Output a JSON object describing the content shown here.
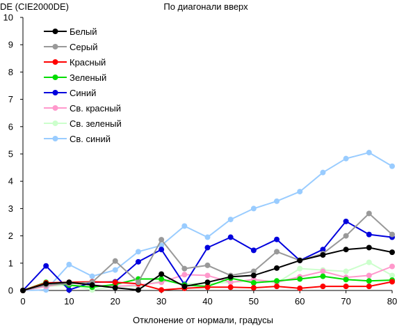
{
  "chart_data": {
    "type": "line",
    "title": "По диагонали вверх",
    "ylabel": "DE (CIE2000DE)",
    "xlabel": "Отклонение от нормали, градусы",
    "x": [
      0,
      5,
      10,
      15,
      20,
      25,
      30,
      35,
      40,
      45,
      50,
      55,
      60,
      65,
      70,
      75,
      80
    ],
    "xlim": [
      0,
      80
    ],
    "ylim": [
      0,
      10
    ],
    "xticks": [
      "0",
      "10",
      "20",
      "30",
      "40",
      "50",
      "60",
      "70",
      "80"
    ],
    "xtick_values": [
      0,
      10,
      20,
      30,
      40,
      50,
      60,
      70,
      80
    ],
    "yticks": [
      "0",
      "1",
      "2",
      "3",
      "4",
      "5",
      "6",
      "7",
      "8",
      "9",
      "10"
    ],
    "ytick_values": [
      0,
      1,
      2,
      3,
      4,
      5,
      6,
      7,
      8,
      9,
      10
    ],
    "grid": false,
    "legend_position": "top-left",
    "series": [
      {
        "name": "Белый",
        "color": "#000000",
        "values": [
          0,
          0.25,
          0.3,
          0.2,
          0.1,
          0.02,
          0.6,
          0.15,
          0.3,
          0.5,
          0.55,
          0.82,
          1.1,
          1.3,
          1.5,
          1.57,
          1.4
        ]
      },
      {
        "name": "Серый",
        "color": "#999999",
        "values": [
          0,
          0.2,
          0.25,
          0.3,
          1.08,
          0.3,
          1.86,
          0.8,
          0.92,
          0.55,
          0.7,
          1.42,
          1.1,
          1.35,
          2.0,
          2.82,
          2.05
        ]
      },
      {
        "name": "Красный",
        "color": "#ff0000",
        "values": [
          0,
          0.28,
          0.3,
          0.32,
          0.3,
          0.25,
          0.02,
          0.08,
          0.12,
          0.12,
          0.1,
          0.15,
          0.08,
          0.15,
          0.15,
          0.15,
          0.32
        ]
      },
      {
        "name": "Зеленый",
        "color": "#00dd00",
        "values": [
          0,
          0.3,
          0.2,
          0.12,
          0.22,
          0.42,
          0.42,
          0.2,
          0.15,
          0.45,
          0.28,
          0.35,
          0.42,
          0.52,
          0.4,
          0.35,
          0.38
        ]
      },
      {
        "name": "Синий",
        "color": "#0000dd",
        "values": [
          0,
          0.9,
          0.02,
          0.3,
          0.32,
          1.05,
          1.5,
          0.22,
          1.57,
          1.95,
          1.47,
          1.87,
          1.1,
          1.5,
          2.53,
          2.05,
          1.95
        ]
      },
      {
        "name": "Св. красный",
        "color": "#ff99cc",
        "values": [
          0,
          0.15,
          0.28,
          0.2,
          0.15,
          0.2,
          0.3,
          0.58,
          0.55,
          0.3,
          0.4,
          0.3,
          0.5,
          0.7,
          0.48,
          0.55,
          0.88
        ]
      },
      {
        "name": "Св. зеленый",
        "color": "#ccffcc",
        "values": [
          0,
          0.15,
          0.2,
          0.02,
          0.15,
          0.15,
          0.35,
          0.25,
          0.25,
          0.3,
          0.35,
          0.28,
          0.8,
          0.75,
          0.7,
          1.03,
          0.55
        ]
      },
      {
        "name": "Св. синий",
        "color": "#99ccff",
        "values": [
          0,
          0.02,
          0.95,
          0.52,
          0.75,
          1.42,
          1.65,
          2.36,
          1.95,
          2.6,
          3.0,
          3.27,
          3.62,
          4.32,
          4.83,
          5.05,
          4.55
        ]
      }
    ]
  }
}
